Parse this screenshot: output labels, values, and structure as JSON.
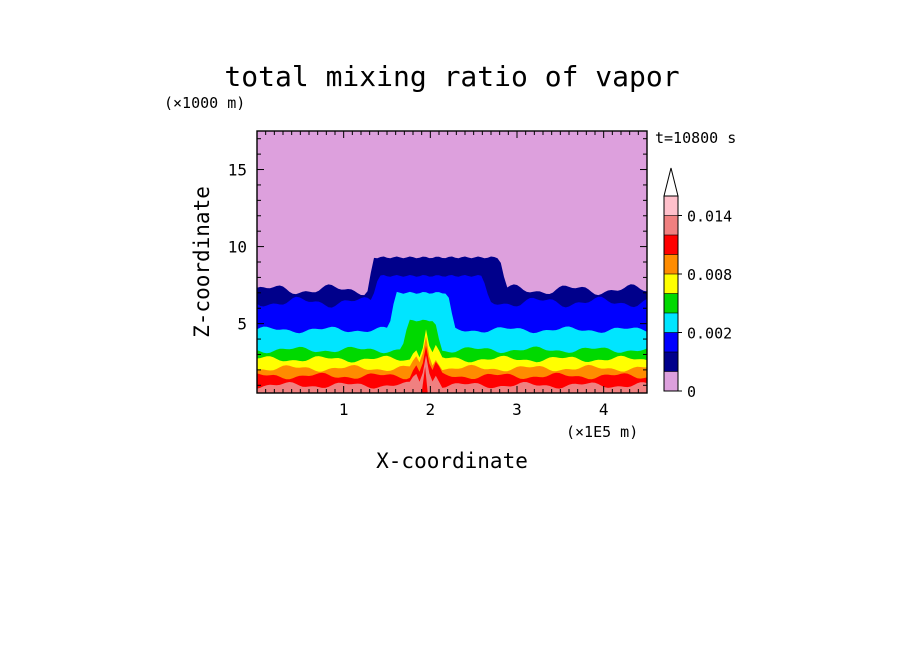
{
  "chart_data": {
    "type": "heatmap",
    "title": "total mixing ratio of vapor",
    "xlabel": "X-coordinate",
    "ylabel": "Z-coordinate",
    "x_unit": "(×1E5 m)",
    "y_unit": "(×1000 m)",
    "time_label": "t=10800 s",
    "xlim": [
      0,
      4.5
    ],
    "ylim": [
      0.5,
      17.5
    ],
    "x_ticks": [
      1,
      2,
      3,
      4
    ],
    "y_ticks": [
      5,
      10,
      15
    ],
    "colorbar": {
      "levels": [
        0,
        0.001,
        0.002,
        0.004,
        0.006,
        0.008,
        0.01,
        0.012,
        0.014,
        0.016
      ],
      "tick_values": [
        0,
        0.002,
        0.008,
        0.014
      ],
      "tick_labels": [
        "0",
        "0.002",
        "0.008",
        "0.014"
      ],
      "colors": [
        "#dda0dd",
        "#00008b",
        "#0000ff",
        "#00e5ff",
        "#00d900",
        "#ffff00",
        "#ff8c00",
        "#ff0000",
        "#f08080",
        "#ffc0cb"
      ],
      "extend": "max"
    },
    "background_color": "#dda0dd",
    "layers": [
      {
        "level": 0.001,
        "color": "#00008b",
        "top_z": 7.2,
        "mound_top_z": 9.3,
        "mound_x": [
          1.35,
          2.8
        ]
      },
      {
        "level": 0.002,
        "color": "#0000ff",
        "top_z": 6.4,
        "mound_top_z": 8.1,
        "mound_x": [
          1.4,
          2.6
        ]
      },
      {
        "level": 0.004,
        "color": "#00e5ff",
        "top_z": 4.6,
        "mound_top_z": 7.0,
        "mound_x": [
          1.6,
          2.2
        ]
      },
      {
        "level": 0.006,
        "color": "#00d900",
        "top_z": 3.3,
        "mound_top_z": 5.2,
        "mound_x": [
          1.75,
          2.05
        ]
      },
      {
        "level": 0.008,
        "color": "#ffff00",
        "top_z": 2.7
      },
      {
        "level": 0.01,
        "color": "#ff8c00",
        "top_z": 2.1
      },
      {
        "level": 0.012,
        "color": "#ff0000",
        "top_z": 1.6
      },
      {
        "level": 0.014,
        "color": "#f08080",
        "top_z": 1.0
      }
    ]
  }
}
